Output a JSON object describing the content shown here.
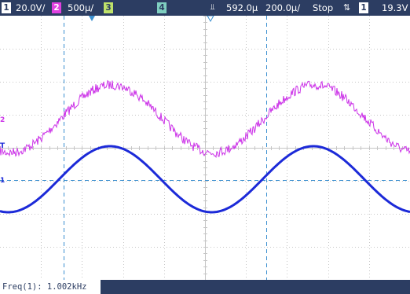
{
  "status_bar": {
    "ch1_number": "1",
    "ch1_scale": "20.0V/",
    "ch2_number": "2",
    "ch2_scale": "500µ/",
    "ch3_number": "3",
    "ch4_number": "4",
    "time_delay": "592.0µ",
    "time_scale": "200.0µ/",
    "run_state": "Stop",
    "trigger_slope_icon": "rise-fall-arrows-icon",
    "trigger_source": "1",
    "trigger_level": "19.3V"
  },
  "markers": {
    "ch2_ground": "2",
    "ch1_ground": "1",
    "trigger_level": "T"
  },
  "measurement": {
    "label": "Freq(1): 1.002kHz"
  },
  "colors": {
    "bar_bg": "#2c3d62",
    "ch1": "#1c2ad8",
    "ch2": "#cc33e8",
    "grid": "#c6c6c6",
    "cursor": "#3a8fd0"
  },
  "waveforms": {
    "frequency_hz": 1002,
    "ch1_amplitude_div": 1.0,
    "ch2_amplitude_div": 1.0
  }
}
